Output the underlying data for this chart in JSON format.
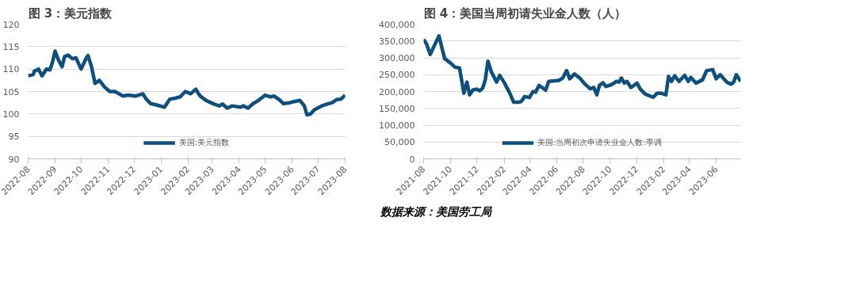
{
  "chart_data": [
    {
      "type": "line",
      "title": "图 3：美元指数",
      "x": [
        "2022-08-01",
        "2022-08-07",
        "2022-08-08",
        "2022-08-13",
        "2022-08-17",
        "2022-08-22",
        "2022-08-26",
        "2022-08-29",
        "2022-09-01",
        "2022-09-05",
        "2022-09-09",
        "2022-09-12",
        "2022-09-16",
        "2022-09-21",
        "2022-09-25",
        "2022-10-01",
        "2022-10-07",
        "2022-10-09",
        "2022-10-13",
        "2022-10-17",
        "2022-10-22",
        "2022-10-28",
        "2022-11-03",
        "2022-11-09",
        "2022-11-18",
        "2022-11-24",
        "2022-12-03",
        "2022-12-11",
        "2022-12-15",
        "2022-12-20",
        "2022-12-27",
        "2023-01-05",
        "2023-01-11",
        "2023-01-17",
        "2023-01-23",
        "2023-01-29",
        "2023-02-04",
        "2023-02-10",
        "2023-02-15",
        "2023-02-22",
        "2023-03-03",
        "2023-03-09",
        "2023-03-13",
        "2023-03-18",
        "2023-03-24",
        "2023-04-02",
        "2023-04-06",
        "2023-04-11",
        "2023-04-17",
        "2023-04-23",
        "2023-05-01",
        "2023-05-07",
        "2023-05-11",
        "2023-05-17",
        "2023-05-22",
        "2023-05-29",
        "2023-06-04",
        "2023-06-10",
        "2023-06-15",
        "2023-06-18",
        "2023-06-22",
        "2023-06-27",
        "2023-07-05",
        "2023-07-11",
        "2023-07-17",
        "2023-07-22",
        "2023-07-27",
        "2023-08-01"
      ],
      "series": [
        {
          "name": "美国:美元指数",
          "color": "#0e4f7e",
          "values": [
            108.5,
            108.8,
            109.5,
            110.0,
            108.5,
            110.0,
            109.8,
            111.5,
            114.0,
            112.0,
            110.5,
            112.8,
            113.1,
            112.3,
            112.5,
            110.0,
            112.5,
            113.0,
            110.5,
            106.8,
            107.5,
            106.0,
            105.0,
            105.0,
            104.0,
            104.2,
            104.0,
            104.5,
            103.3,
            102.3,
            102.0,
            101.5,
            103.3,
            103.5,
            103.8,
            105.0,
            104.5,
            105.5,
            104.0,
            103.0,
            102.2,
            101.8,
            102.2,
            101.3,
            101.8,
            101.5,
            101.8,
            101.3,
            102.3,
            103.0,
            104.2,
            103.8,
            104.0,
            103.2,
            102.3,
            102.5,
            102.8,
            103.0,
            101.8,
            99.8,
            100.0,
            101.0,
            101.8,
            102.2,
            102.5,
            103.2,
            103.3,
            104.2
          ]
        }
      ],
      "xlim": [
        "2022-08-01",
        "2023-08-01"
      ],
      "xticks": [
        "2022-08",
        "2022-09",
        "2022-10",
        "2022-11",
        "2022-12",
        "2023-01",
        "2023-02",
        "2023-03",
        "2023-04",
        "2023-05",
        "2023-06",
        "2023-07",
        "2023-08"
      ],
      "ylim": [
        90,
        120
      ],
      "yticks": [
        90,
        95,
        100,
        105,
        110,
        115,
        120
      ],
      "grid": "y",
      "legend": "bottom",
      "line_style": "solid"
    },
    {
      "type": "line",
      "title": "图 4：美国当周初请失业金人数（人）",
      "x": [
        "2021-08-01",
        "2021-08-08",
        "2021-08-16",
        "2021-08-25",
        "2021-09-05",
        "2021-09-18",
        "2021-10-01",
        "2021-10-12",
        "2021-10-22",
        "2021-11-01",
        "2021-11-08",
        "2021-11-14",
        "2021-11-22",
        "2021-12-01",
        "2021-12-07",
        "2021-12-14",
        "2021-12-20",
        "2021-12-26",
        "2022-01-03",
        "2022-01-15",
        "2022-01-22",
        "2022-02-02",
        "2022-02-14",
        "2022-02-23",
        "2022-03-04",
        "2022-03-12",
        "2022-03-20",
        "2022-03-31",
        "2022-04-08",
        "2022-04-14",
        "2022-04-22",
        "2022-05-01",
        "2022-05-07",
        "2022-05-14",
        "2022-05-28",
        "2022-06-06",
        "2022-06-15",
        "2022-06-24",
        "2022-07-01",
        "2022-07-12",
        "2022-07-24",
        "2022-08-05",
        "2022-08-17",
        "2022-08-25",
        "2022-09-01",
        "2022-09-07",
        "2022-09-15",
        "2022-09-22",
        "2022-10-04",
        "2022-10-16",
        "2022-10-22",
        "2022-10-27",
        "2022-11-03",
        "2022-11-09",
        "2022-11-18",
        "2022-11-27",
        "2022-12-02",
        "2022-12-09",
        "2022-12-21",
        "2023-01-08",
        "2023-01-17",
        "2023-01-26",
        "2023-02-06",
        "2023-02-12",
        "2023-02-19",
        "2023-02-26",
        "2023-03-08",
        "2023-03-21",
        "2023-03-29",
        "2023-04-04",
        "2023-04-16",
        "2023-05-01",
        "2023-05-10",
        "2023-05-24",
        "2023-06-01",
        "2023-06-10",
        "2023-06-25",
        "2023-07-05",
        "2023-07-11",
        "2023-07-17",
        "2023-07-27"
      ],
      "series": [
        {
          "name": "美国:当周初次申请失业金人数:季调",
          "color": "#0e4f7e",
          "values": [
            355000,
            340000,
            310000,
            335000,
            365000,
            298000,
            285000,
            272000,
            270000,
            195000,
            228000,
            190000,
            205000,
            207000,
            202000,
            210000,
            235000,
            290000,
            258000,
            228000,
            248000,
            225000,
            195000,
            168000,
            168000,
            170000,
            185000,
            182000,
            200000,
            198000,
            218000,
            210000,
            204000,
            230000,
            232000,
            233000,
            240000,
            262000,
            238000,
            252000,
            240000,
            222000,
            208000,
            212000,
            190000,
            218000,
            226000,
            215000,
            220000,
            230000,
            228000,
            240000,
            225000,
            230000,
            212000,
            220000,
            225000,
            208000,
            192000,
            183000,
            195000,
            195000,
            190000,
            245000,
            230000,
            247000,
            230000,
            248000,
            230000,
            242000,
            225000,
            235000,
            262000,
            265000,
            238000,
            250000,
            228000,
            222000,
            228000,
            250000,
            230000
          ]
        }
      ],
      "xlim": [
        "2021-08-01",
        "2023-07-27"
      ],
      "xticks": [
        "2021-08",
        "2021-10",
        "2021-12",
        "2022-02",
        "2022-04",
        "2022-06",
        "2022-08",
        "2022-10",
        "2022-12",
        "2023-02",
        "2023-04",
        "2023-06"
      ],
      "ylim": [
        0,
        400000
      ],
      "yticks": [
        0,
        {
          "value": 50000,
          "label": "50,000"
        },
        {
          "value": 100000,
          "label": "100,000"
        },
        {
          "value": 150000,
          "label": "150,000"
        },
        {
          "value": 200000,
          "label": "200,000"
        },
        {
          "value": 250000,
          "label": "250,000"
        },
        {
          "value": 300000,
          "label": "300,000"
        },
        {
          "value": 350000,
          "label": "350,000"
        },
        {
          "value": 400000,
          "label": "400,000"
        }
      ],
      "grid": "y",
      "legend": "bottom",
      "line_style": "solid",
      "annotations": [
        "数据来源：美国劳工局"
      ]
    }
  ]
}
